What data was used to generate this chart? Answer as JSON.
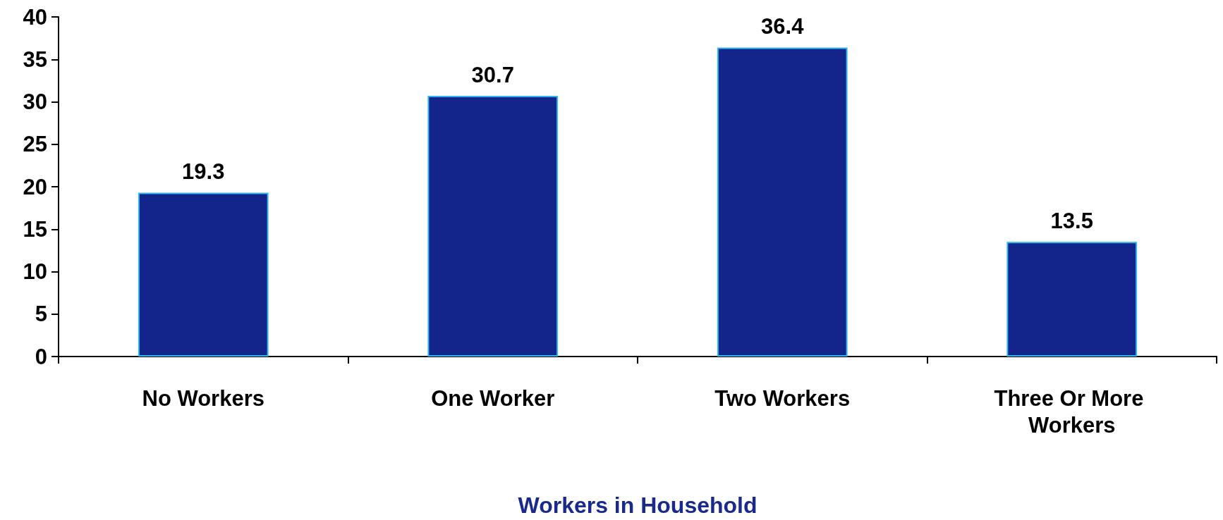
{
  "chart_data": {
    "type": "bar",
    "xlabel": "Workers in Household",
    "categories": [
      "No Workers",
      "One Worker",
      "Two Workers",
      "Three Or More Workers"
    ],
    "values": [
      19.3,
      30.7,
      36.4,
      13.5
    ],
    "color": "#13258a",
    "ylim": [
      0,
      40
    ],
    "yticks": [
      0,
      5,
      10,
      15,
      20,
      25,
      30,
      35,
      40
    ],
    "grid": false,
    "data_labels": true
  }
}
